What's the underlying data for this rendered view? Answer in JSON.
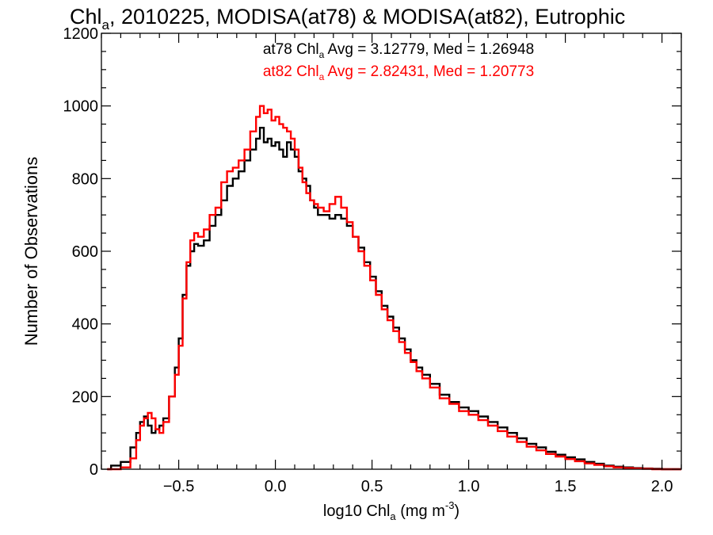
{
  "title": {
    "prefix": "Chl",
    "sub": "a",
    "rest": ", 2010225, MODISA(at78) & MODISA(at82), Eutrophic"
  },
  "legend": {
    "line1": {
      "pre": "at78 Chl",
      "sub": "a",
      "post": " Avg = 3.12779, Med = 1.26948",
      "color": "#000000"
    },
    "line2": {
      "pre": "at82 Chl",
      "sub": "a",
      "post": " Avg = 2.82431, Med = 1.20773",
      "color": "#ff0000"
    }
  },
  "chart_data": {
    "type": "line",
    "step": true,
    "xlabel": {
      "pre": "log10 Chl",
      "sub": "a",
      "mid": " (mg m",
      "sup": "-3",
      "post": ")"
    },
    "ylabel": "Number of Observations",
    "xlim": [
      -0.9,
      2.1
    ],
    "ylim": [
      0,
      1200
    ],
    "x_ticks": [
      -0.5,
      0.0,
      0.5,
      1.0,
      1.5,
      2.0
    ],
    "x_tick_labels": [
      "−0.5",
      "0.0",
      "0.5",
      "1.0",
      "1.5",
      "2.0"
    ],
    "y_ticks": [
      0,
      200,
      400,
      600,
      800,
      1000,
      1200
    ],
    "y_tick_labels": [
      "0",
      "200",
      "400",
      "600",
      "800",
      "1000",
      "1200"
    ],
    "grid": false,
    "series": [
      {
        "name": "at78",
        "color": "#000000",
        "points": [
          [
            -0.87,
            0
          ],
          [
            -0.85,
            10
          ],
          [
            -0.8,
            20
          ],
          [
            -0.75,
            60
          ],
          [
            -0.72,
            100
          ],
          [
            -0.7,
            130
          ],
          [
            -0.68,
            145
          ],
          [
            -0.66,
            120
          ],
          [
            -0.64,
            100
          ],
          [
            -0.62,
            110
          ],
          [
            -0.6,
            120
          ],
          [
            -0.58,
            140
          ],
          [
            -0.55,
            200
          ],
          [
            -0.52,
            280
          ],
          [
            -0.5,
            360
          ],
          [
            -0.48,
            480
          ],
          [
            -0.46,
            560
          ],
          [
            -0.44,
            600
          ],
          [
            -0.42,
            620
          ],
          [
            -0.4,
            615
          ],
          [
            -0.37,
            630
          ],
          [
            -0.34,
            670
          ],
          [
            -0.31,
            700
          ],
          [
            -0.28,
            740
          ],
          [
            -0.25,
            780
          ],
          [
            -0.22,
            800
          ],
          [
            -0.19,
            820
          ],
          [
            -0.16,
            850
          ],
          [
            -0.13,
            880
          ],
          [
            -0.1,
            910
          ],
          [
            -0.08,
            940
          ],
          [
            -0.06,
            900
          ],
          [
            -0.04,
            910
          ],
          [
            -0.02,
            890
          ],
          [
            0.0,
            900
          ],
          [
            0.02,
            880
          ],
          [
            0.04,
            860
          ],
          [
            0.06,
            900
          ],
          [
            0.08,
            880
          ],
          [
            0.1,
            860
          ],
          [
            0.12,
            820
          ],
          [
            0.14,
            800
          ],
          [
            0.16,
            780
          ],
          [
            0.18,
            740
          ],
          [
            0.2,
            720
          ],
          [
            0.22,
            700
          ],
          [
            0.25,
            700
          ],
          [
            0.28,
            690
          ],
          [
            0.31,
            700
          ],
          [
            0.34,
            690
          ],
          [
            0.37,
            670
          ],
          [
            0.4,
            640
          ],
          [
            0.43,
            610
          ],
          [
            0.46,
            570
          ],
          [
            0.49,
            530
          ],
          [
            0.52,
            490
          ],
          [
            0.55,
            450
          ],
          [
            0.58,
            420
          ],
          [
            0.61,
            390
          ],
          [
            0.64,
            360
          ],
          [
            0.67,
            330
          ],
          [
            0.7,
            300
          ],
          [
            0.73,
            280
          ],
          [
            0.76,
            260
          ],
          [
            0.8,
            235
          ],
          [
            0.85,
            205
          ],
          [
            0.9,
            185
          ],
          [
            0.95,
            170
          ],
          [
            1.0,
            160
          ],
          [
            1.05,
            145
          ],
          [
            1.1,
            130
          ],
          [
            1.15,
            115
          ],
          [
            1.2,
            100
          ],
          [
            1.25,
            85
          ],
          [
            1.3,
            70
          ],
          [
            1.35,
            60
          ],
          [
            1.4,
            48
          ],
          [
            1.45,
            40
          ],
          [
            1.5,
            33
          ],
          [
            1.55,
            27
          ],
          [
            1.6,
            20
          ],
          [
            1.65,
            15
          ],
          [
            1.7,
            10
          ],
          [
            1.75,
            7
          ],
          [
            1.8,
            5
          ],
          [
            1.85,
            3
          ],
          [
            1.9,
            2
          ],
          [
            1.95,
            1
          ],
          [
            2.0,
            0
          ],
          [
            2.1,
            0
          ]
        ]
      },
      {
        "name": "at82",
        "color": "#ff0000",
        "points": [
          [
            -0.87,
            0
          ],
          [
            -0.8,
            5
          ],
          [
            -0.75,
            30
          ],
          [
            -0.72,
            80
          ],
          [
            -0.7,
            120
          ],
          [
            -0.68,
            140
          ],
          [
            -0.66,
            155
          ],
          [
            -0.64,
            140
          ],
          [
            -0.62,
            110
          ],
          [
            -0.6,
            100
          ],
          [
            -0.58,
            130
          ],
          [
            -0.55,
            200
          ],
          [
            -0.52,
            260
          ],
          [
            -0.5,
            340
          ],
          [
            -0.48,
            470
          ],
          [
            -0.46,
            570
          ],
          [
            -0.44,
            630
          ],
          [
            -0.42,
            650
          ],
          [
            -0.4,
            640
          ],
          [
            -0.37,
            660
          ],
          [
            -0.34,
            700
          ],
          [
            -0.31,
            720
          ],
          [
            -0.28,
            790
          ],
          [
            -0.25,
            820
          ],
          [
            -0.22,
            830
          ],
          [
            -0.19,
            850
          ],
          [
            -0.16,
            880
          ],
          [
            -0.13,
            930
          ],
          [
            -0.1,
            970
          ],
          [
            -0.08,
            1000
          ],
          [
            -0.06,
            980
          ],
          [
            -0.04,
            990
          ],
          [
            -0.02,
            960
          ],
          [
            0.0,
            970
          ],
          [
            0.02,
            950
          ],
          [
            0.04,
            940
          ],
          [
            0.06,
            930
          ],
          [
            0.08,
            910
          ],
          [
            0.1,
            880
          ],
          [
            0.12,
            830
          ],
          [
            0.14,
            790
          ],
          [
            0.16,
            760
          ],
          [
            0.18,
            740
          ],
          [
            0.2,
            730
          ],
          [
            0.22,
            720
          ],
          [
            0.25,
            710
          ],
          [
            0.28,
            730
          ],
          [
            0.31,
            750
          ],
          [
            0.34,
            720
          ],
          [
            0.37,
            680
          ],
          [
            0.4,
            640
          ],
          [
            0.43,
            600
          ],
          [
            0.46,
            560
          ],
          [
            0.49,
            520
          ],
          [
            0.52,
            480
          ],
          [
            0.55,
            440
          ],
          [
            0.58,
            410
          ],
          [
            0.61,
            380
          ],
          [
            0.64,
            350
          ],
          [
            0.67,
            320
          ],
          [
            0.7,
            295
          ],
          [
            0.73,
            270
          ],
          [
            0.76,
            250
          ],
          [
            0.8,
            225
          ],
          [
            0.85,
            195
          ],
          [
            0.9,
            180
          ],
          [
            0.95,
            160
          ],
          [
            1.0,
            150
          ],
          [
            1.05,
            135
          ],
          [
            1.1,
            120
          ],
          [
            1.15,
            105
          ],
          [
            1.2,
            90
          ],
          [
            1.25,
            75
          ],
          [
            1.3,
            62
          ],
          [
            1.35,
            52
          ],
          [
            1.4,
            42
          ],
          [
            1.45,
            35
          ],
          [
            1.5,
            28
          ],
          [
            1.55,
            22
          ],
          [
            1.6,
            16
          ],
          [
            1.65,
            12
          ],
          [
            1.7,
            8
          ],
          [
            1.75,
            5
          ],
          [
            1.8,
            3
          ],
          [
            1.85,
            2
          ],
          [
            1.9,
            1
          ],
          [
            1.95,
            0
          ],
          [
            2.0,
            0
          ],
          [
            2.1,
            0
          ]
        ]
      }
    ]
  }
}
